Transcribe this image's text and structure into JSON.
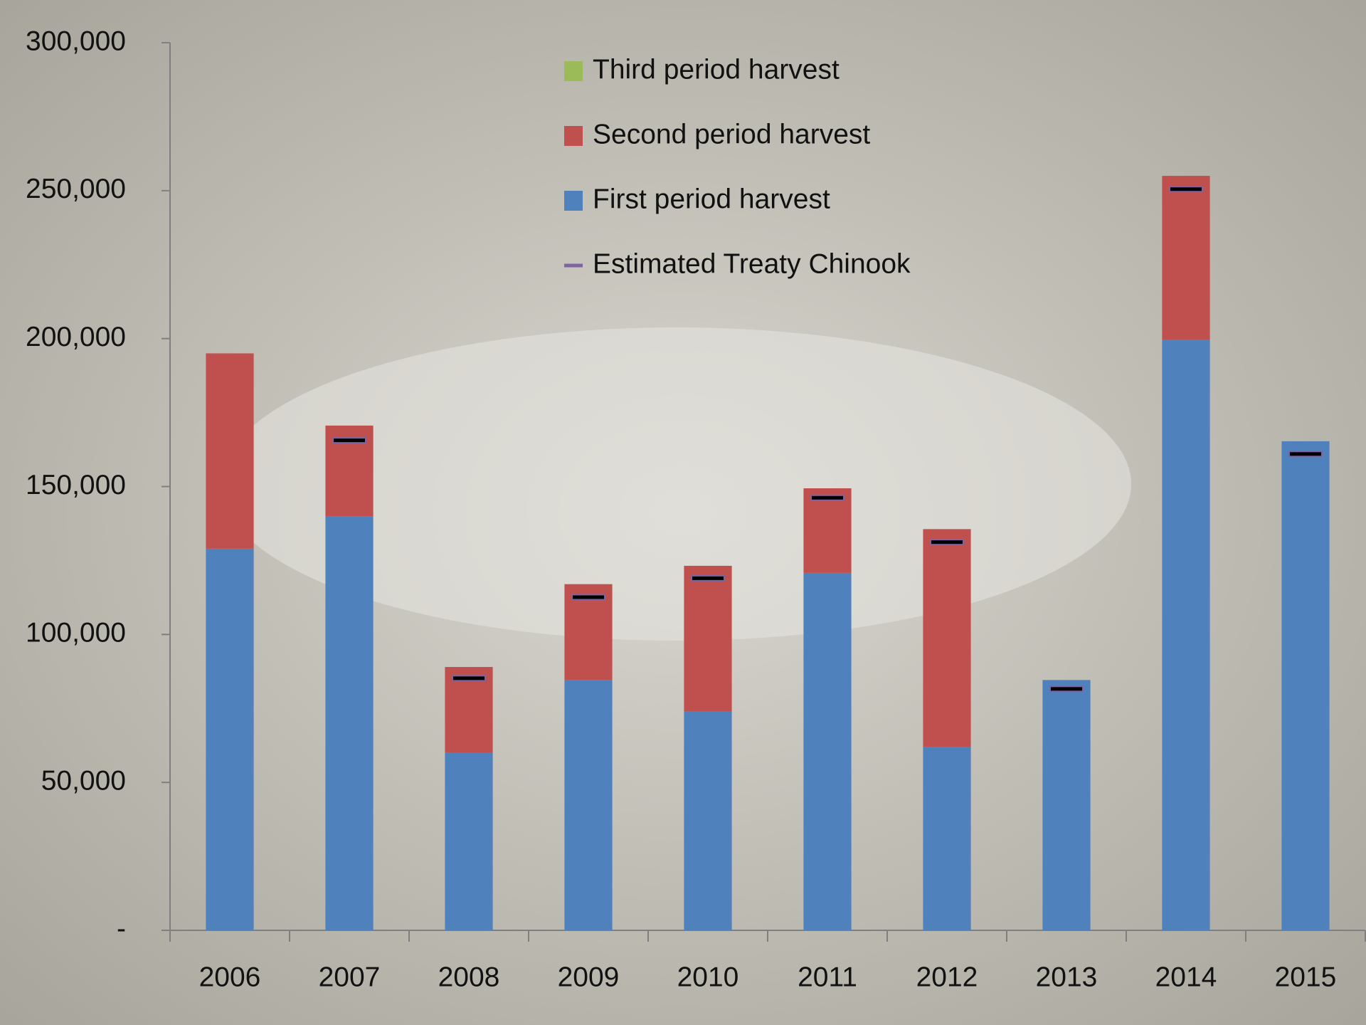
{
  "chart_data": {
    "type": "bar",
    "stacked": true,
    "categories": [
      "2006",
      "2007",
      "2008",
      "2009",
      "2010",
      "2011",
      "2012",
      "2013",
      "2014",
      "2015"
    ],
    "series": [
      {
        "name": "First period harvest",
        "color": "#4f81bd",
        "type": "bar",
        "values": [
          129000,
          140000,
          60000,
          84600,
          74000,
          120800,
          61900,
          84600,
          199500,
          165300
        ]
      },
      {
        "name": "Second period harvest",
        "color": "#c0504d",
        "type": "bar",
        "values": [
          66000,
          30600,
          29000,
          32400,
          49200,
          28600,
          73700,
          0,
          55500,
          0
        ]
      },
      {
        "name": "Third period harvest",
        "color": "#9bbb59",
        "type": "bar",
        "values": [
          0,
          0,
          0,
          0,
          0,
          0,
          0,
          0,
          0,
          0
        ]
      },
      {
        "name": "Estimated  Treaty Chinook",
        "color": "#8064a2",
        "type": "dash",
        "values": [
          null,
          165600,
          85200,
          112600,
          119000,
          146200,
          131200,
          81600,
          250500,
          161000
        ]
      }
    ],
    "legend_order": [
      2,
      1,
      0,
      3
    ],
    "ylim": [
      0,
      300000
    ],
    "yticks": [
      {
        "value": 0,
        "label": "-"
      },
      {
        "value": 50000,
        "label": "50,000"
      },
      {
        "value": 100000,
        "label": "100,000"
      },
      {
        "value": 150000,
        "label": "150,000"
      },
      {
        "value": 200000,
        "label": "200,000"
      },
      {
        "value": 250000,
        "label": "250,000"
      },
      {
        "value": 300000,
        "label": "300,000"
      }
    ]
  }
}
